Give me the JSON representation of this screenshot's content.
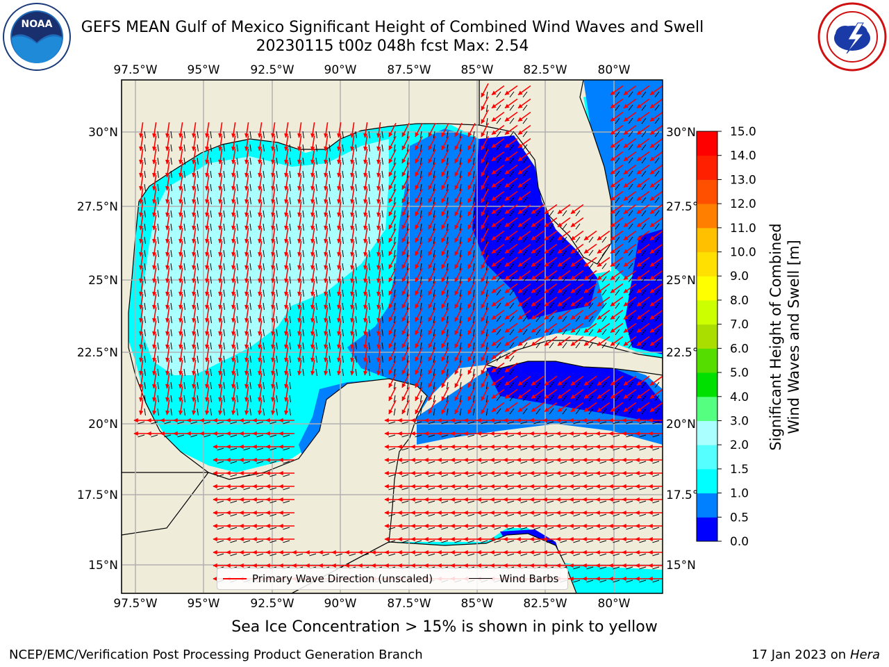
{
  "title_line1": "GEFS MEAN Gulf of Mexico Significant Height of Combined Wind Waves and Swell",
  "title_line2": "20230115 t00z 048h fcst   Max: 2.54",
  "logos": {
    "left": "noaa-logo",
    "left_text": "NOAA",
    "right": "nws-logo"
  },
  "map": {
    "lon_ticks": [
      "97.5°W",
      "95°W",
      "92.5°W",
      "90°W",
      "87.5°W",
      "85°W",
      "82.5°W",
      "80°W"
    ],
    "lat_ticks": [
      "30°N",
      "27.5°N",
      "25°N",
      "22.5°N",
      "20°N",
      "17.5°N",
      "15°N"
    ],
    "lat_ticks_right": [
      "30°N",
      "27.5°N",
      "25°N",
      "22.5°N",
      "20°N",
      "17.5°N",
      "15°N"
    ],
    "colors": {
      "land": "#efecda",
      "grid": "#b0b0b0",
      "arrow": "#ff0000",
      "barb": "#000000"
    },
    "legend": {
      "arrow_label": "Primary Wave Direction (unscaled)",
      "barb_label": "Wind Barbs"
    }
  },
  "colorbar": {
    "title_line1": "Significant Height of Combined",
    "title_line2": "Wind Waves and Swell [m]",
    "ticks": [
      "0.0",
      "0.5",
      "1.0",
      "1.5",
      "2.0",
      "3.0",
      "4.0",
      "5.0",
      "6.0",
      "7.0",
      "8.0",
      "9.0",
      "10.0",
      "11.0",
      "12.0",
      "13.0",
      "14.0",
      "15.0"
    ],
    "colors": [
      "#0000ff",
      "#0080ff",
      "#00ffff",
      "#55ffff",
      "#aaffff",
      "#55ff80",
      "#00e000",
      "#55dd00",
      "#aadd00",
      "#ccff00",
      "#ffff00",
      "#ffe000",
      "#ffc000",
      "#ff8000",
      "#ff5000",
      "#ff2000",
      "#ff0000"
    ]
  },
  "note": "Sea Ice Concentration > 15% is shown in pink to yellow",
  "footer_left": "NCEP/EMC/Verification Post Processing Product Generation Branch",
  "footer_right_prefix": "17 Jan 2023 on ",
  "footer_right_host": "Hera"
}
